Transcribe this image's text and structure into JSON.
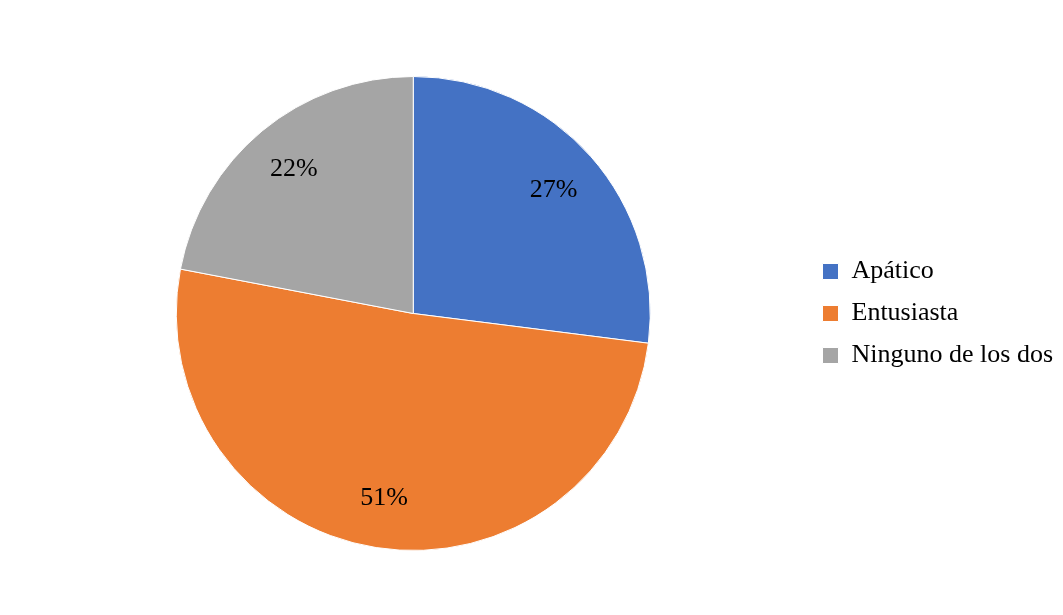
{
  "chart_data": {
    "type": "pie",
    "categories": [
      "Apático",
      "Entusiasta",
      "Ninguno de los dos"
    ],
    "values": [
      27,
      51,
      22
    ],
    "value_labels": [
      "27%",
      "51%",
      "22%"
    ],
    "colors": [
      "#4472c4",
      "#ed7d31",
      "#a5a5a5"
    ],
    "legend": "right"
  }
}
